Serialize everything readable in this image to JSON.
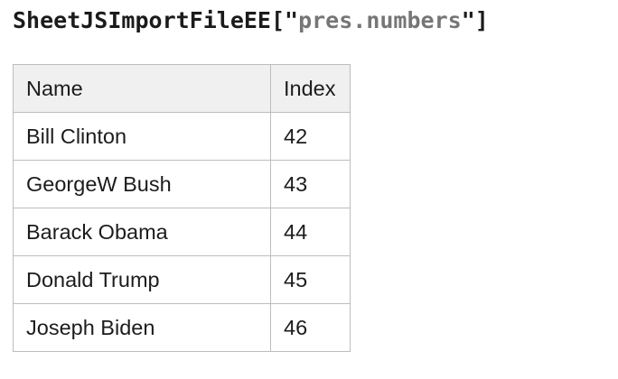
{
  "title": {
    "segments": [
      {
        "text": "SheetJSImportFileEE[\"",
        "role": "code"
      },
      {
        "text": "pres.numbers",
        "role": "string"
      },
      {
        "text": "\"]",
        "role": "code"
      }
    ]
  },
  "table": {
    "columns": [
      "Name",
      "Index"
    ],
    "rows": [
      {
        "name": "Bill Clinton",
        "index": "42"
      },
      {
        "name": "GeorgeW Bush",
        "index": "43"
      },
      {
        "name": "Barack Obama",
        "index": "44"
      },
      {
        "name": "Donald Trump",
        "index": "45"
      },
      {
        "name": "Joseph Biden",
        "index": "46"
      }
    ]
  },
  "colors": {
    "code_text": "#1b1b1b",
    "code_string": "#767676",
    "body_text": "#1c1c1c",
    "header_bg": "#f0f0f0",
    "table_border": "#bdbdbd"
  }
}
